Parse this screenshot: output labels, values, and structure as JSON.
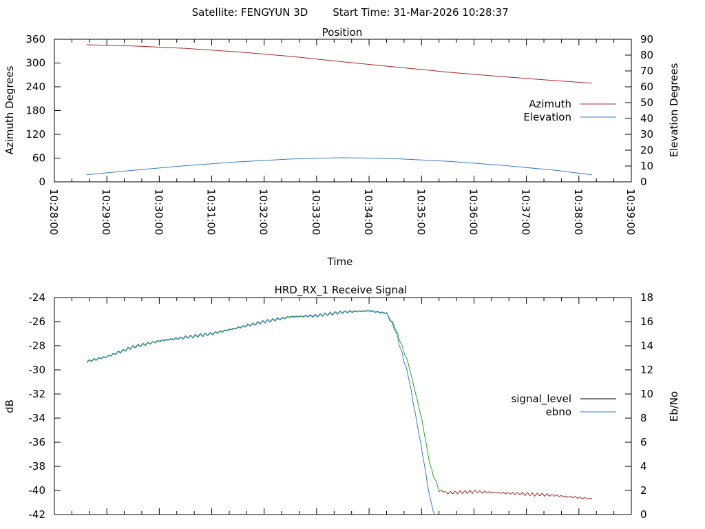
{
  "header": {
    "satellite_label": "Satellite: FENGYUN 3D",
    "start_label": "Start Time: 31-Mar-2026 10:28:37"
  },
  "chart_data": [
    {
      "type": "line",
      "title": "Position",
      "xlabel": "Time",
      "ylabel": "Azimuth Degrees",
      "y2label": "Elevation Degrees",
      "xlim": [
        "10:28:00",
        "10:39:00"
      ],
      "x_ticks": [
        "10:28:00",
        "10:29:00",
        "10:30:00",
        "10:31:00",
        "10:32:00",
        "10:33:00",
        "10:34:00",
        "10:35:00",
        "10:36:00",
        "10:37:00",
        "10:38:00",
        "10:39:00"
      ],
      "ylim": [
        0,
        360
      ],
      "y_ticks": [
        0,
        60,
        120,
        180,
        240,
        300,
        360
      ],
      "y2lim": [
        0,
        90
      ],
      "y2_ticks": [
        0,
        10,
        20,
        30,
        40,
        50,
        60,
        70,
        80,
        90
      ],
      "legend_position": "right",
      "series": [
        {
          "name": "Azimuth",
          "axis": "y1",
          "color": "#a52a2a",
          "x": [
            "10:28:37",
            "10:29:30",
            "10:30:30",
            "10:31:30",
            "10:32:30",
            "10:33:30",
            "10:34:30",
            "10:35:30",
            "10:36:30",
            "10:37:30",
            "10:38:15"
          ],
          "y": [
            346,
            343,
            337,
            328,
            317,
            303,
            290,
            277,
            266,
            256,
            249
          ]
        },
        {
          "name": "Elevation",
          "axis": "y2",
          "color": "#3a7abf",
          "x": [
            "10:28:37",
            "10:29:30",
            "10:30:30",
            "10:31:30",
            "10:32:30",
            "10:33:00",
            "10:33:30",
            "10:34:00",
            "10:34:30",
            "10:35:30",
            "10:36:30",
            "10:37:30",
            "10:38:15"
          ],
          "y": [
            4.5,
            7.3,
            10.2,
            12.6,
            14.4,
            14.9,
            15.2,
            15.0,
            14.6,
            13.0,
            10.5,
            7.5,
            4.5
          ]
        }
      ]
    },
    {
      "type": "line",
      "title": "HRD_RX_1 Receive Signal",
      "xlabel": "",
      "ylabel": "dB",
      "y2label": "Eb/No",
      "xlim": [
        "10:28:00",
        "10:39:00"
      ],
      "ylim": [
        -42,
        -24
      ],
      "y_ticks": [
        -42,
        -40,
        -38,
        -36,
        -34,
        -32,
        -30,
        -28,
        -26,
        -24
      ],
      "y2lim": [
        0,
        18
      ],
      "y2_ticks": [
        0,
        2,
        4,
        6,
        8,
        10,
        12,
        14,
        16,
        18
      ],
      "legend_position": "right",
      "series": [
        {
          "name": "signal_level",
          "axis": "y1",
          "color": "#a52a2a",
          "color_upper": "#2ca02c",
          "x": [
            "10:28:37",
            "10:29:00",
            "10:29:30",
            "10:30:00",
            "10:30:30",
            "10:31:00",
            "10:31:30",
            "10:32:00",
            "10:32:30",
            "10:33:00",
            "10:33:30",
            "10:34:00",
            "10:34:20",
            "10:34:30",
            "10:34:45",
            "10:35:00",
            "10:35:10",
            "10:35:20",
            "10:35:30",
            "10:36:00",
            "10:36:30",
            "10:37:00",
            "10:37:30",
            "10:38:00",
            "10:38:15"
          ],
          "y": [
            -29.3,
            -28.9,
            -28.1,
            -27.6,
            -27.3,
            -27.0,
            -26.5,
            -26.0,
            -25.6,
            -25.5,
            -25.2,
            -25.1,
            -25.3,
            -26.5,
            -29.5,
            -34.0,
            -38.0,
            -40.0,
            -40.2,
            -40.1,
            -40.2,
            -40.3,
            -40.4,
            -40.6,
            -40.7
          ]
        },
        {
          "name": "ebno",
          "axis": "y2",
          "color": "#3a7abf",
          "x": [
            "10:28:37",
            "10:29:00",
            "10:29:30",
            "10:30:00",
            "10:30:30",
            "10:31:00",
            "10:31:30",
            "10:32:00",
            "10:32:30",
            "10:33:00",
            "10:33:30",
            "10:34:00",
            "10:34:20",
            "10:34:30",
            "10:34:45",
            "10:35:00",
            "10:35:10",
            "10:35:15"
          ],
          "y": [
            12.7,
            13.1,
            13.9,
            14.4,
            14.7,
            15.0,
            15.5,
            16.0,
            16.4,
            16.5,
            16.8,
            16.9,
            16.7,
            15.3,
            11.5,
            5.5,
            1.2,
            0.0
          ]
        }
      ]
    }
  ]
}
